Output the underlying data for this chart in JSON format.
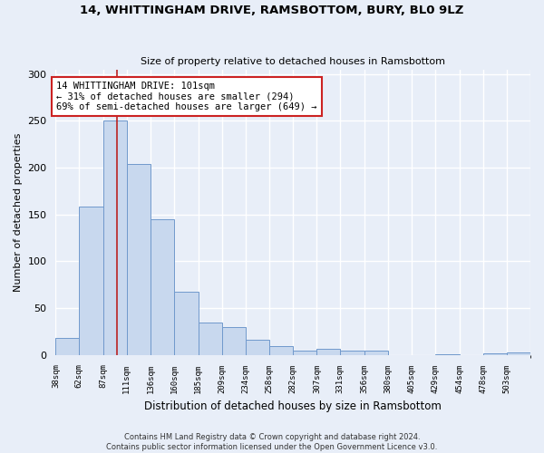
{
  "title": "14, WHITTINGHAM DRIVE, RAMSBOTTOM, BURY, BL0 9LZ",
  "subtitle": "Size of property relative to detached houses in Ramsbottom",
  "xlabel": "Distribution of detached houses by size in Ramsbottom",
  "ylabel": "Number of detached properties",
  "footnote1": "Contains HM Land Registry data © Crown copyright and database right 2024.",
  "footnote2": "Contains public sector information licensed under the Open Government Licence v3.0.",
  "bar_color": "#c8d8ee",
  "bar_edge_color": "#7099cc",
  "background_color": "#e8eef8",
  "grid_color": "#ffffff",
  "vline_color": "#bb2222",
  "vline_x": 101,
  "annotation_text": "14 WHITTINGHAM DRIVE: 101sqm\n← 31% of detached houses are smaller (294)\n69% of semi-detached houses are larger (649) →",
  "annotation_box_color": "#ffffff",
  "annotation_box_edge_color": "#cc2222",
  "bin_edges": [
    38,
    62,
    87,
    111,
    136,
    160,
    185,
    209,
    234,
    258,
    282,
    307,
    331,
    356,
    380,
    405,
    429,
    454,
    478,
    503,
    527
  ],
  "bar_heights": [
    18,
    158,
    250,
    204,
    145,
    67,
    35,
    30,
    16,
    9,
    5,
    6,
    5,
    5,
    0,
    0,
    1,
    0,
    2,
    3
  ],
  "ylim": [
    0,
    305
  ],
  "yticks": [
    0,
    50,
    100,
    150,
    200,
    250,
    300
  ]
}
